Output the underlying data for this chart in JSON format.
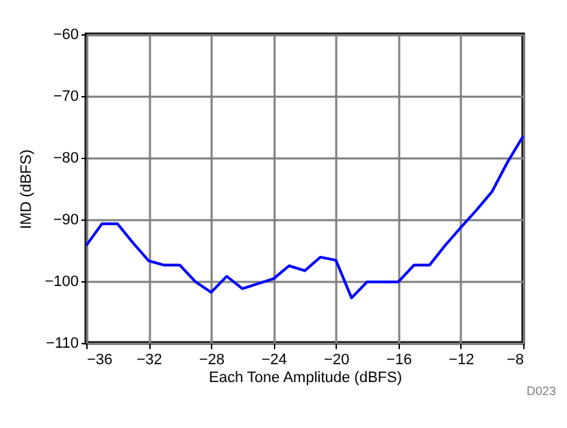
{
  "chart_data": {
    "type": "line",
    "xlabel": "Each Tone Amplitude (dBFS)",
    "ylabel": "IMD (dBFS)",
    "x": [
      -36,
      -35,
      -34,
      -33,
      -32,
      -31,
      -30,
      -29,
      -28,
      -27,
      -26,
      -25,
      -24,
      -23,
      -22,
      -21,
      -20,
      -19,
      -18,
      -17,
      -16,
      -15,
      -14,
      -13,
      -12,
      -11,
      -10,
      -9,
      -8
    ],
    "series": [
      {
        "color": "#0000ff",
        "values": [
          -94.2,
          -90.7,
          -90.7,
          -93.8,
          -96.7,
          -97.4,
          -97.4,
          -100.1,
          -101.8,
          -99.2,
          -101.2,
          -100.4,
          -99.6,
          -97.5,
          -98.3,
          -96.1,
          -96.6,
          -102.7,
          -100.1,
          -100.1,
          -100.1,
          -97.4,
          -97.4,
          -94.2,
          -91.3,
          -88.5,
          -85.5,
          -80.7,
          -76.5
        ]
      }
    ],
    "xlim": [
      -36,
      -8
    ],
    "xticks": [
      -36,
      -32,
      -28,
      -24,
      -20,
      -16,
      -12,
      -8
    ],
    "ylim": [
      -110,
      -60
    ],
    "yticks": [
      -110,
      -100,
      -90,
      -80,
      -70,
      -60
    ],
    "grid": true,
    "marker": "none",
    "line_style": "solid",
    "annotations": [
      "D023"
    ]
  }
}
